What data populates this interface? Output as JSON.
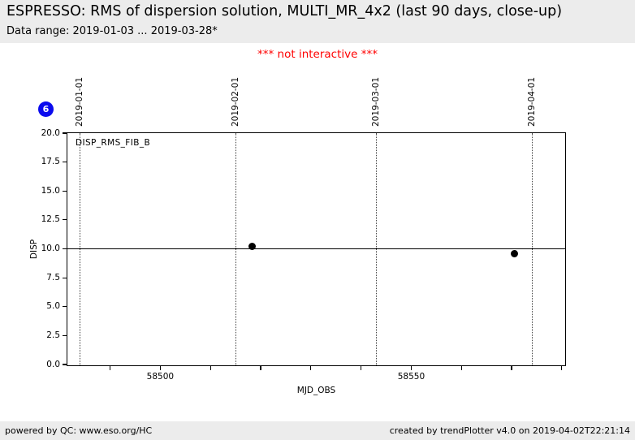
{
  "header": {
    "title": "ESPRESSO: RMS of dispersion solution, MULTI_MR_4x2 (last 90 days, close-up)",
    "subtitle": "Data range: 2019-01-03 ... 2019-03-28*"
  },
  "notice": "*** not interactive ***",
  "badge": {
    "count": "6",
    "color": "#0b0bee"
  },
  "footer": {
    "left": "powered by QC: www.eso.org/HC",
    "right": "created by trendPlotter v4.0 on 2019-04-02T22:21:14"
  },
  "chart_data": {
    "type": "scatter",
    "title": "ESPRESSO: RMS of dispersion solution, MULTI_MR_4x2 (last 90 days, close-up)",
    "xlabel": "MJD_OBS",
    "ylabel": "DISP",
    "legend_label": "DISP_RMS_FIB_B",
    "xlim": [
      58481.5,
      58580.5
    ],
    "ylim": [
      0,
      20
    ],
    "yticks": [
      0,
      2.5,
      5,
      7.5,
      10,
      12.5,
      15,
      17.5,
      20
    ],
    "xticks_minor": [
      58490,
      58500,
      58510,
      58520,
      58530,
      58540,
      58550,
      58560,
      58570,
      58580
    ],
    "xticks_labeled": [
      58500,
      58550
    ],
    "reference_line_y": 10,
    "date_gridlines": [
      {
        "label": "2019-01-01",
        "mjd": 58484
      },
      {
        "label": "2019-02-01",
        "mjd": 58515
      },
      {
        "label": "2019-03-01",
        "mjd": 58543
      },
      {
        "label": "2019-04-01",
        "mjd": 58574
      }
    ],
    "series": [
      {
        "name": "DISP_RMS_FIB_B",
        "points": [
          [
            58518.3,
            10.2
          ],
          [
            58570.5,
            9.6
          ]
        ]
      }
    ],
    "point_color": "#000000",
    "grid": false,
    "legend_position": "top-left-inside"
  }
}
